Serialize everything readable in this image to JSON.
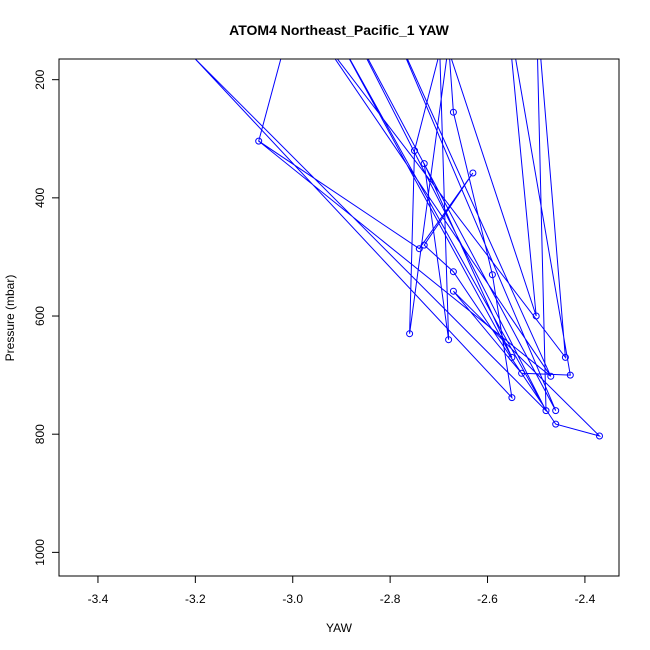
{
  "chart_data": {
    "type": "line",
    "title": "ATOM4 Northeast_Pacific_1 YAW",
    "xlabel": "YAW",
    "ylabel": "Pressure (mbar)",
    "xlim": [
      -3.48,
      -2.33
    ],
    "ylim": [
      1040,
      165
    ],
    "y_inverted": true,
    "xticks": [
      "-3.4",
      "-3.2",
      "-3.0",
      "-2.8",
      "-2.6",
      "-2.4"
    ],
    "xtick_values": [
      -3.4,
      -3.2,
      -3.0,
      -2.8,
      -2.6,
      -2.4
    ],
    "yticks": [
      "200",
      "400",
      "600",
      "800",
      "1000"
    ],
    "ytick_values": [
      200,
      400,
      600,
      800,
      1000
    ],
    "color": "#0000ff",
    "grid": false,
    "series": [
      {
        "points": [
          [
            -2.68,
            95
          ],
          [
            -2.75,
            320
          ],
          [
            -2.76,
            630
          ],
          [
            -2.68,
            140
          ],
          [
            -2.67,
            255
          ],
          [
            -2.59,
            530
          ],
          [
            -2.55,
            738
          ],
          [
            -3.2,
            165
          ],
          [
            -2.48,
            760
          ],
          [
            -2.5,
            70
          ],
          [
            -2.44,
            670
          ],
          [
            -2.95,
            120
          ],
          [
            -2.47,
            702
          ],
          [
            -2.8,
            100
          ],
          [
            -2.46,
            760
          ],
          [
            -2.9,
            80
          ],
          [
            -2.48,
            760
          ],
          [
            -2.92,
            110
          ],
          [
            -2.55,
            670
          ],
          [
            -2.73,
            342
          ],
          [
            -2.68,
            640
          ],
          [
            -2.7,
            100
          ],
          [
            -2.5,
            600
          ],
          [
            -2.56,
            80
          ],
          [
            -2.43,
            700
          ],
          [
            -2.53,
            697
          ],
          [
            -2.67,
            558
          ],
          [
            -2.37,
            803
          ],
          [
            -2.46,
            783
          ],
          [
            -2.67,
            525
          ],
          [
            -2.73,
            480
          ],
          [
            -2.63,
            358
          ],
          [
            -2.74,
            486
          ],
          [
            -3.07,
            304
          ],
          [
            -3.0,
            90
          ],
          [
            -3.07,
            304
          ],
          [
            -2.47,
            702
          ]
        ],
        "markers": [
          [
            -2.67,
            255
          ],
          [
            -2.75,
            320
          ],
          [
            -2.73,
            342
          ],
          [
            -2.63,
            358
          ],
          [
            -3.07,
            304
          ],
          [
            -2.73,
            480
          ],
          [
            -2.74,
            486
          ],
          [
            -2.67,
            525
          ],
          [
            -2.59,
            530
          ],
          [
            -2.67,
            558
          ],
          [
            -2.5,
            600
          ],
          [
            -2.76,
            630
          ],
          [
            -2.68,
            640
          ],
          [
            -2.55,
            670
          ],
          [
            -2.44,
            670
          ],
          [
            -2.53,
            697
          ],
          [
            -2.43,
            700
          ],
          [
            -2.47,
            702
          ],
          [
            -2.55,
            738
          ],
          [
            -2.48,
            760
          ],
          [
            -2.46,
            760
          ],
          [
            -2.46,
            783
          ],
          [
            -2.37,
            803
          ]
        ]
      }
    ]
  }
}
